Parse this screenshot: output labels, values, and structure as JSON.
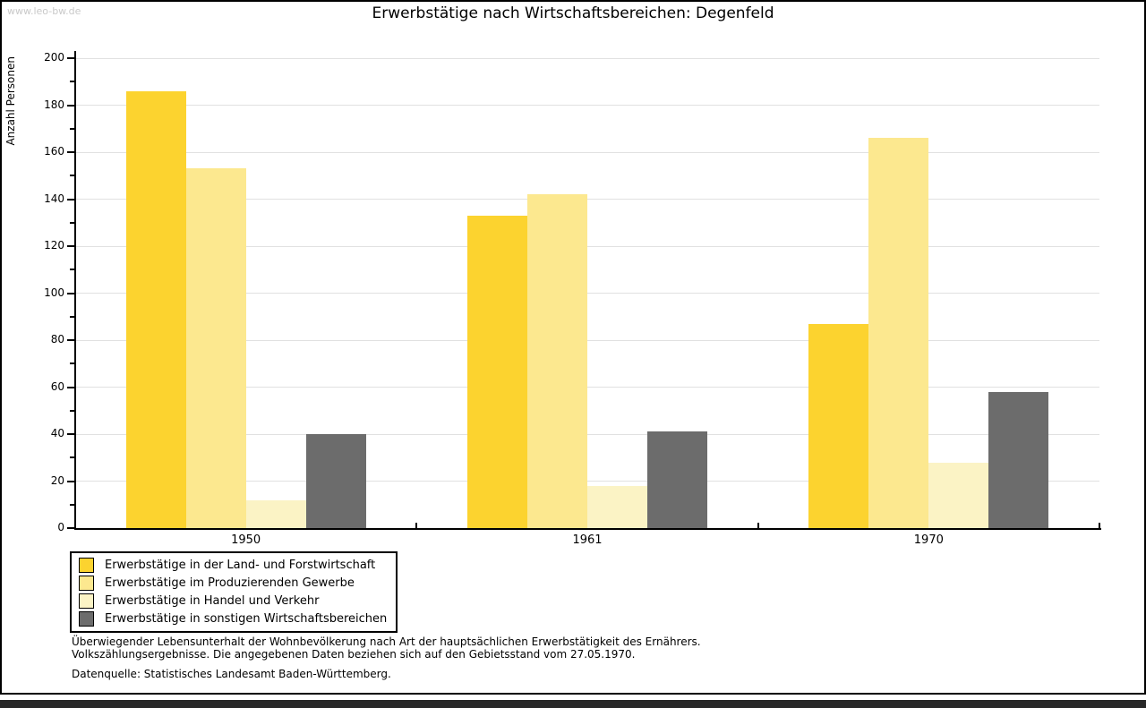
{
  "watermark": "www.leo-bw.de",
  "title": "Erwerbstätige nach Wirtschaftsbereichen: Degenfeld",
  "chart_data": {
    "type": "bar",
    "title": "Erwerbstätige nach Wirtschaftsbereichen: Degenfeld",
    "ylabel": "Anzahl Personen",
    "xlabel": "",
    "categories": [
      "1950",
      "1961",
      "1970"
    ],
    "series": [
      {
        "name": "Erwerbstätige in der Land- und Forstwirtschaft",
        "color": "#FCD32F",
        "values": [
          186,
          133,
          87
        ]
      },
      {
        "name": "Erwerbstätige im Produzierenden Gewerbe",
        "color": "#FCE88F",
        "values": [
          153,
          142,
          166
        ]
      },
      {
        "name": "Erwerbstätige in Handel und Verkehr",
        "color": "#FBF3C5",
        "values": [
          12,
          18,
          28
        ]
      },
      {
        "name": "Erwerbstätige in sonstigen Wirtschaftsbereichen",
        "color": "#6C6C6C",
        "values": [
          40,
          41,
          58
        ]
      }
    ],
    "ylim": [
      0,
      200
    ],
    "ytick_step": 20,
    "yminor_step": 10,
    "grid": true,
    "legend_position": "bottom-left"
  },
  "footnotes": {
    "line1": "Überwiegender Lebensunterhalt der Wohnbevölkerung nach Art der hauptsächlichen Erwerbstätigkeit des Ernährers.",
    "line2": "Volkszählungsergebnisse. Die angegebenen Daten beziehen sich auf den Gebietsstand vom 27.05.1970.",
    "source": "Datenquelle: Statistisches Landesamt Baden-Württemberg."
  },
  "colors": {
    "grid": "#e1e1e1",
    "axis": "#000000",
    "watermark": "#c9c9c9",
    "bottom_bar": "#282828"
  }
}
